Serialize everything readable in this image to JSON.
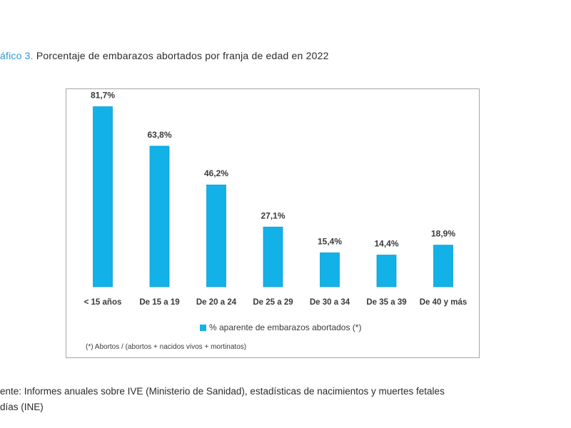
{
  "caption": {
    "prefix": "áfico 3.",
    "text": "Porcentaje de embarazos abortados por franja de edad en 2022"
  },
  "colors": {
    "bar": "#12b2e8",
    "caption_prefix": "#2e9ad4"
  },
  "chart_data": {
    "type": "bar",
    "categories": [
      "< 15 años",
      "De 15 a 19",
      "De 20 a 24",
      "De 25 a 29",
      "De 30 a 34",
      "De 35 a 39",
      "De 40 y más"
    ],
    "series": [
      {
        "name": "% aparente de embarazos abortados (*)",
        "values": [
          81.7,
          63.8,
          46.2,
          27.1,
          15.4,
          14.4,
          18.9
        ]
      }
    ],
    "value_labels": [
      "81,7%",
      "63,8%",
      "46,2%",
      "27,1%",
      "15,4%",
      "14,4%",
      "18,9%"
    ],
    "ylim": [
      0,
      100
    ],
    "grid": false,
    "legend_position": "bottom",
    "note": "(*) Abortos / (abortos + nacidos vivos + mortinatos)"
  },
  "source": {
    "line1": "ente: Informes anuales sobre IVE (Ministerio de Sanidad), estadísticas de nacimientos y muertes fetales",
    "line2": "días (INE)"
  }
}
